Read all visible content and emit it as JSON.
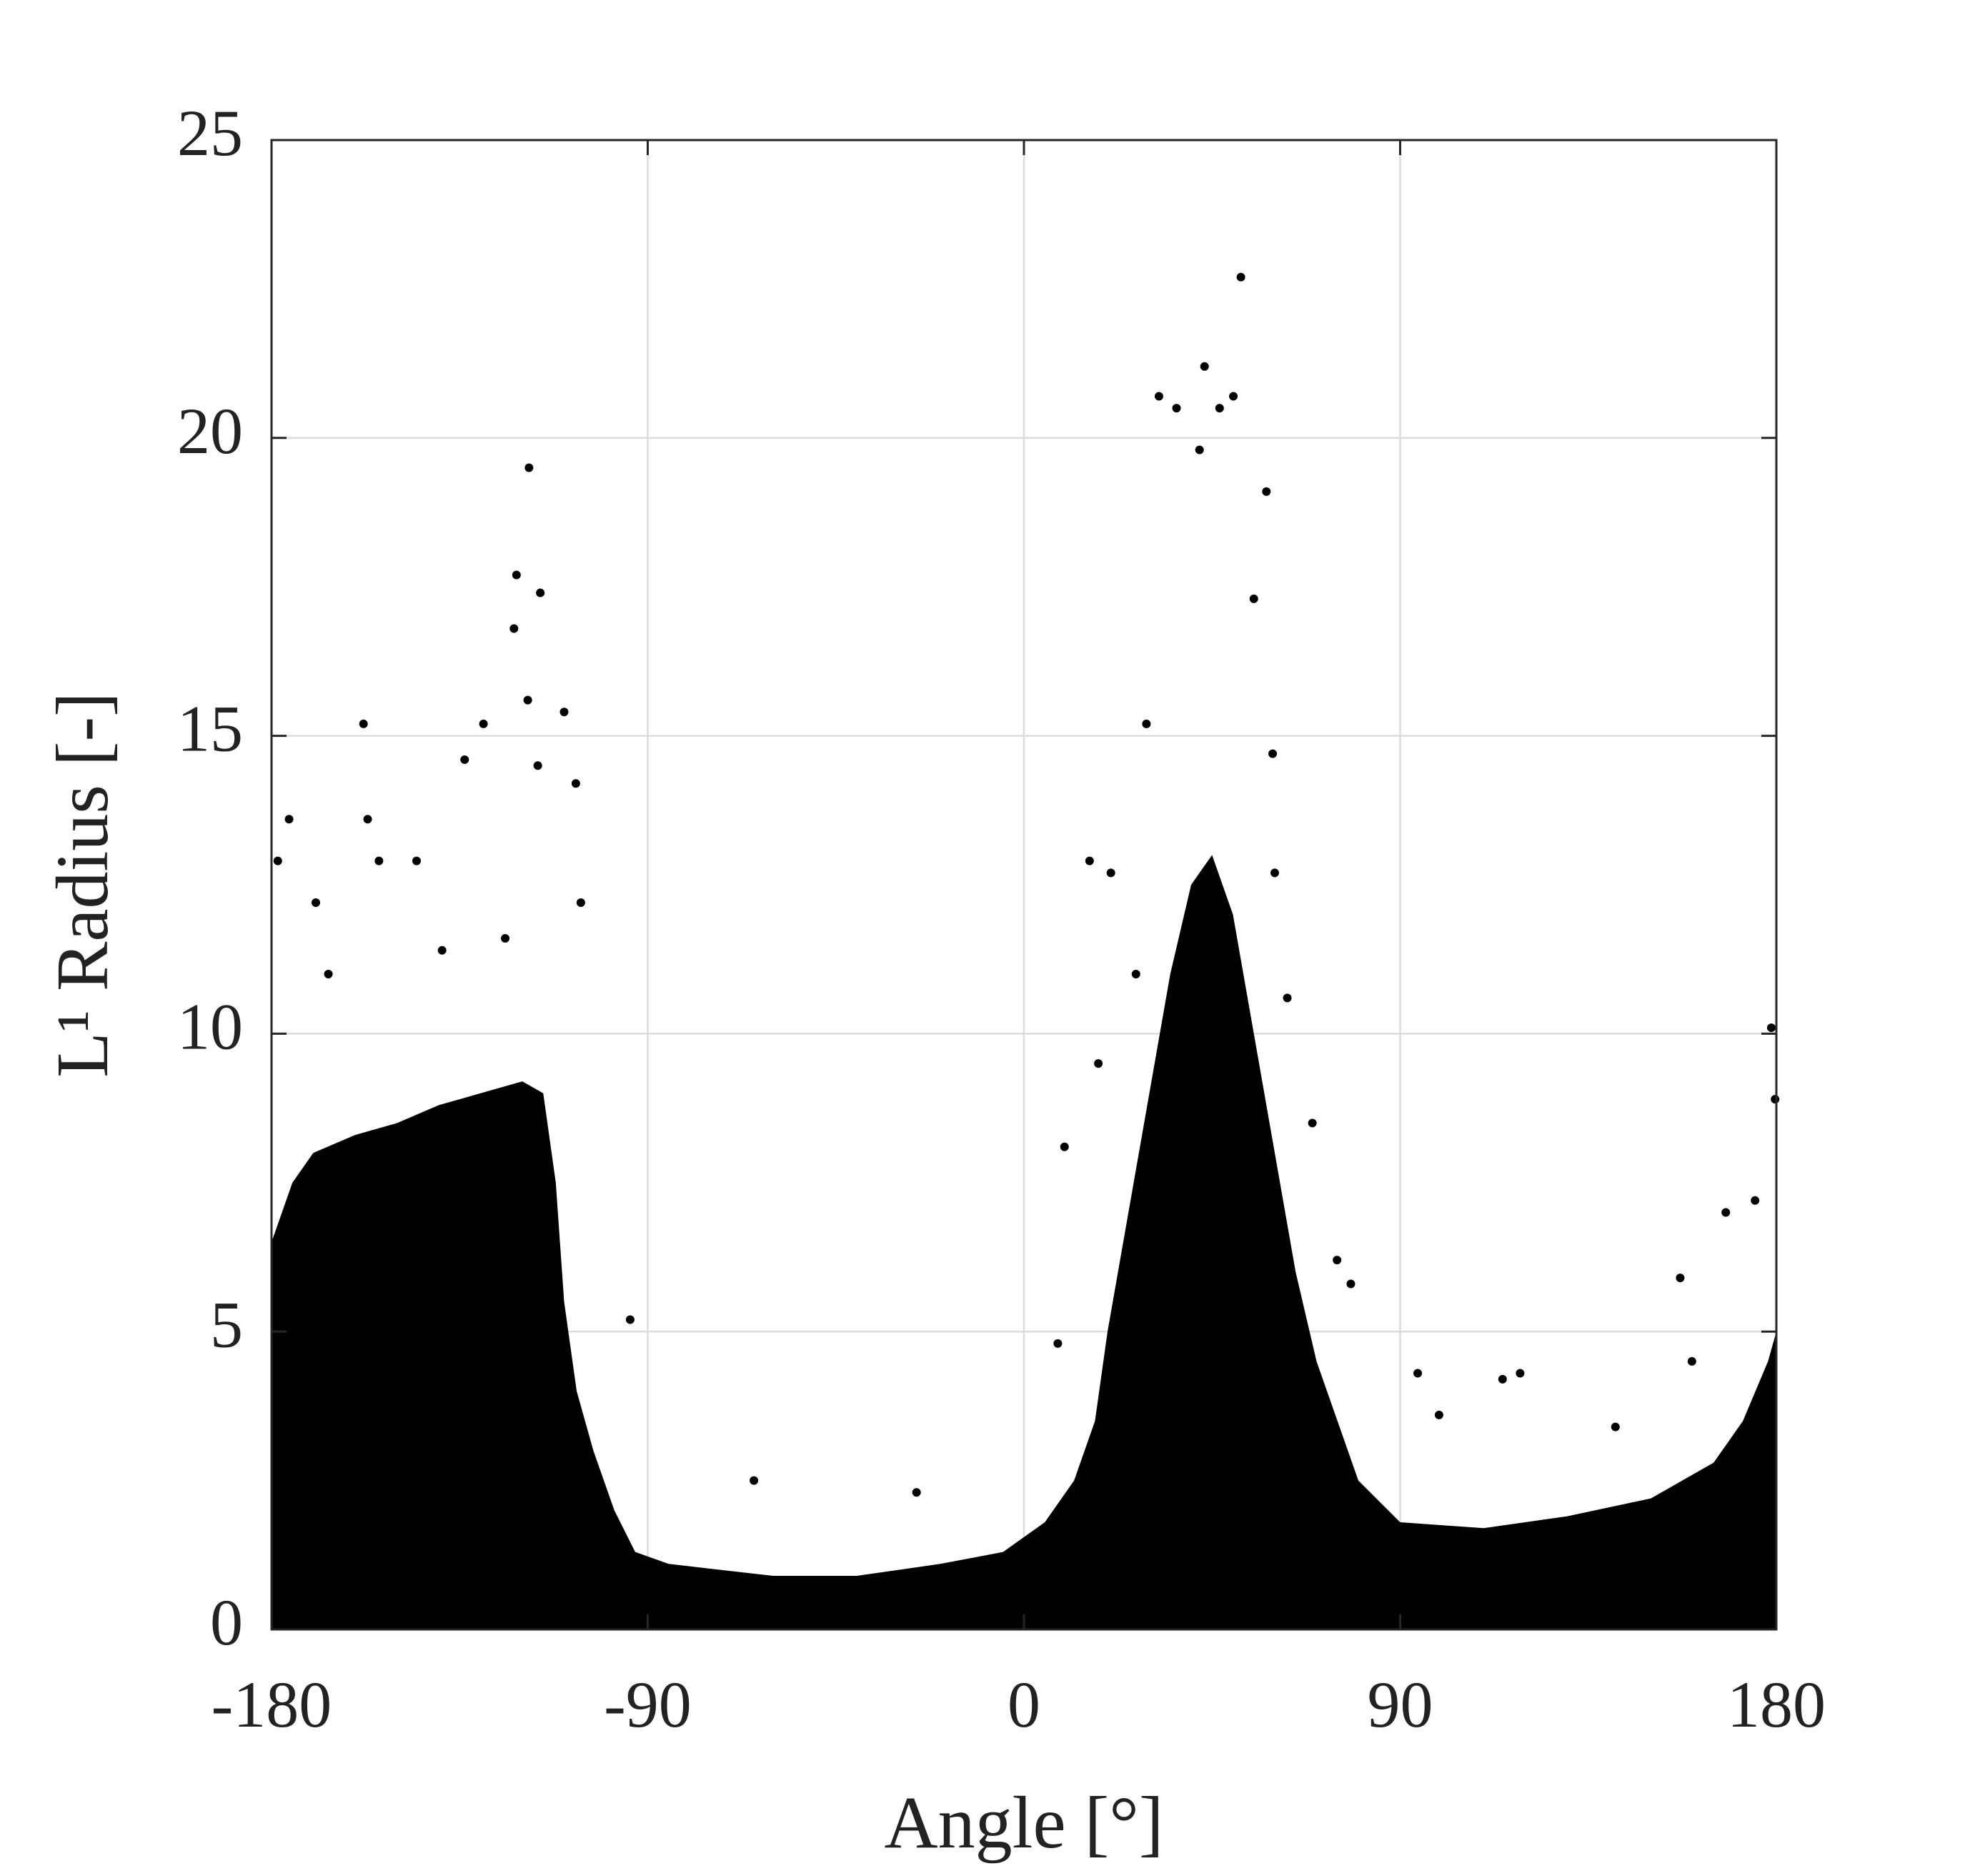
{
  "chart_data": {
    "type": "scatter",
    "xlabel": "Angle [°]",
    "ylabel": "L¹ Radius [-]",
    "xlim": [
      -180,
      180
    ],
    "xticks": [
      -180,
      -90,
      0,
      90,
      180
    ],
    "ylim": [
      0,
      25
    ],
    "yticks": [
      0,
      5,
      10,
      15,
      20,
      25
    ],
    "grid": true,
    "color": "#000000",
    "series": [
      {
        "type": "area",
        "color": "#000000",
        "x": [
          -180,
          -180,
          -175,
          -170,
          -160,
          -150,
          -140,
          -130,
          -120,
          -115,
          -112,
          -110,
          -107,
          -103,
          -98,
          -93,
          -85,
          -60,
          -40,
          -20,
          -5,
          5,
          12,
          17,
          20,
          25,
          30,
          35,
          40,
          45,
          50,
          55,
          60,
          65,
          70,
          75,
          80,
          90,
          110,
          130,
          150,
          165,
          172,
          178,
          180,
          180
        ],
        "values": [
          0,
          6.5,
          7.5,
          8,
          8.3,
          8.5,
          8.8,
          9,
          9.2,
          9,
          7.5,
          5.5,
          4,
          3,
          2,
          1.3,
          1.1,
          0.9,
          0.9,
          1.1,
          1.3,
          1.8,
          2.5,
          3.5,
          5,
          7,
          9,
          11,
          12.5,
          13,
          12,
          10,
          8,
          6,
          4.5,
          3.5,
          2.5,
          1.8,
          1.7,
          1.9,
          2.2,
          2.8,
          3.5,
          4.5,
          5,
          0
        ]
      },
      {
        "type": "points",
        "color": "#000000",
        "x": [
          51.9,
          43.2,
          32.3,
          36.5,
          46.8,
          50.1,
          42,
          58,
          -118.4,
          -121.4,
          -115.7,
          -122,
          -118.7,
          -158,
          -129.3,
          -110,
          -116.3,
          -133.8,
          -175.8,
          -157,
          -107.2,
          15.7,
          59.5,
          178.8,
          -94.2,
          94.2,
          118.7,
          114.5,
          -64.6,
          -25.7,
          78.2,
          74.9,
          179.7,
          167.9,
          174.9,
          8.1,
          9.7,
          29.3,
          55,
          -178.5,
          -169.4,
          -154.3,
          -145.3,
          -166.4,
          -139.2,
          -124.1,
          -106,
          20.8,
          26.8,
          60,
          63,
          69,
          17.8,
          99.3,
          141.5,
          159.8,
          157
        ],
        "values": [
          22.7,
          21.2,
          20.7,
          20.5,
          20.5,
          20.7,
          19.8,
          19.1,
          19.5,
          17.7,
          17.4,
          16.8,
          15.6,
          15.2,
          15.2,
          15.4,
          14.5,
          14.6,
          13.6,
          13.6,
          14.2,
          12.9,
          14.7,
          10.1,
          5.2,
          4.3,
          4.3,
          4.2,
          2.5,
          2.3,
          5.8,
          6.2,
          8.9,
          7,
          7.2,
          4.8,
          8.1,
          15.2,
          17.3,
          12.9,
          12.2,
          12.9,
          12.9,
          11,
          11.4,
          11.6,
          12.2,
          12.7,
          11,
          12.7,
          10.6,
          8.5,
          9.5,
          3.6,
          3.4,
          4.5,
          5.9
        ]
      }
    ]
  }
}
